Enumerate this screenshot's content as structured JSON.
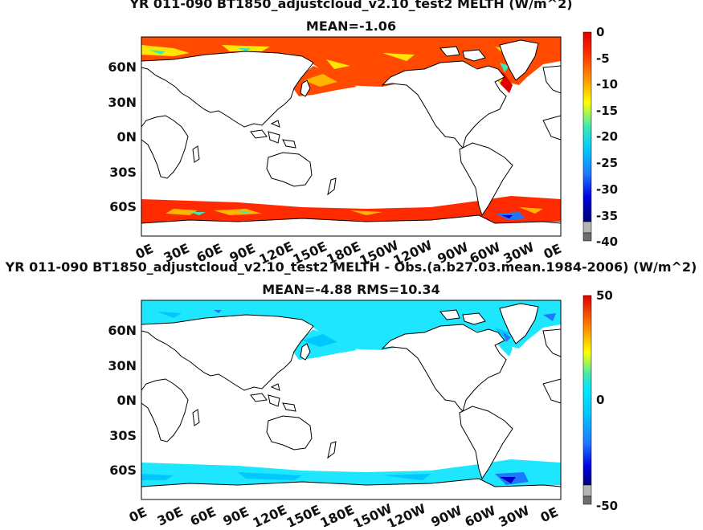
{
  "panels": [
    {
      "title": "YR 011-090 BT1850_adjustcloud_v2.10_test2 MELTH (W/m^2)",
      "subtitle": "MEAN=-1.06",
      "lat_labels": [
        "60N",
        "30N",
        "0N",
        "30S",
        "60S"
      ],
      "lon_labels": [
        "0E",
        "30E",
        "60E",
        "90E",
        "120E",
        "150E",
        "180E",
        "150W",
        "120W",
        "90W",
        "60W",
        "30W",
        "0E"
      ],
      "colorbar": {
        "ticks": [
          "0",
          "-5",
          "-10",
          "-15",
          "-20",
          "-25",
          "-30",
          "-35",
          "-40"
        ],
        "range": [
          -40,
          0
        ]
      }
    },
    {
      "title": "YR 011-090 BT1850_adjustcloud_v2.10_test2 MELTH - Obs.(a.b27.03.mean.1984-2006) (W/m^2)",
      "subtitle": "MEAN=-4.88 RMS=10.34",
      "lat_labels": [
        "60N",
        "30N",
        "0N",
        "30S",
        "60S"
      ],
      "lon_labels": [
        "0E",
        "30E",
        "60E",
        "90E",
        "120E",
        "150E",
        "180E",
        "150W",
        "120W",
        "90W",
        "60W",
        "30W",
        "0E"
      ],
      "colorbar": {
        "ticks": [
          "50",
          "0",
          "-50"
        ],
        "range": [
          -50,
          50
        ]
      }
    }
  ],
  "colors": {
    "colormap": [
      "#1a1aa0",
      "#0000ff",
      "#1e78ff",
      "#00c8ff",
      "#3ce8b4",
      "#b4f050",
      "#ffff00",
      "#ffc800",
      "#ff7800",
      "#ff3200",
      "#e00000"
    ],
    "land_fill": "#ffffff",
    "coastline": "#000000",
    "panel1_ice": "#ff3c00",
    "panel2_ice": "#1ee6ff"
  }
}
